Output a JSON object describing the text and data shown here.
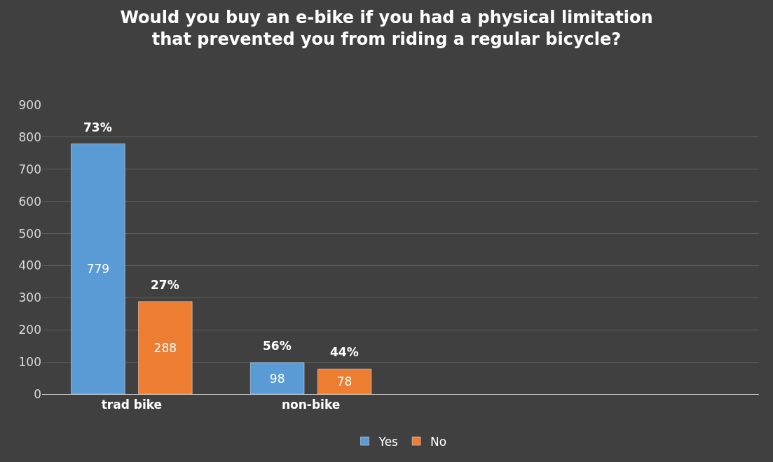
{
  "chart_data": {
    "type": "bar",
    "title": "Would you buy an e-bike if you had a physical limitation that prevented you from riding a regular bicycle?",
    "categories": [
      "trad bike",
      "non-bike",
      null,
      null
    ],
    "series": [
      {
        "name": "Yes",
        "color": "#5b9bd5",
        "values": [
          779,
          98,
          null,
          null
        ]
      },
      {
        "name": "No",
        "color": "#ed7d31",
        "values": [
          288,
          78,
          null,
          null
        ]
      }
    ],
    "annotations": [
      "73%",
      "27%",
      "56%",
      "44%"
    ],
    "data_labels": true,
    "ylim": [
      0,
      900
    ],
    "yticks": [
      0,
      100,
      200,
      300,
      400,
      500,
      600,
      700,
      800,
      900
    ],
    "grid": "y",
    "legend": "bottom"
  }
}
